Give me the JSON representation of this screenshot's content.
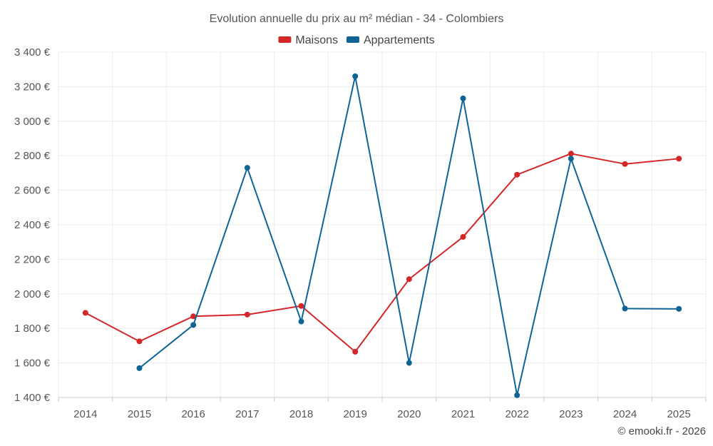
{
  "chart_data": {
    "type": "line",
    "title": "Evolution annuelle du prix au m² médian - 34 - Colombiers",
    "categories": [
      "2014",
      "2015",
      "2016",
      "2017",
      "2018",
      "2019",
      "2020",
      "2021",
      "2022",
      "2023",
      "2024",
      "2025"
    ],
    "ylim": [
      1400,
      3400
    ],
    "yticks": [
      1400,
      1600,
      1800,
      2000,
      2200,
      2400,
      2600,
      2800,
      3000,
      3200,
      3400
    ],
    "ytick_labels": [
      "1 400 €",
      "1 600 €",
      "1 800 €",
      "2 000 €",
      "2 200 €",
      "2 400 €",
      "2 600 €",
      "2 800 €",
      "3 000 €",
      "3 200 €",
      "3 400 €"
    ],
    "xlabel": "",
    "ylabel": "",
    "grid": true,
    "legend_position": "top-center",
    "series": [
      {
        "name": "Maisons",
        "color": "#d62728",
        "values": [
          1890,
          1725,
          1870,
          1880,
          1930,
          1665,
          2085,
          2330,
          2690,
          2812,
          2752,
          2783
        ]
      },
      {
        "name": "Appartements",
        "color": "#0f6496",
        "values": [
          null,
          1570,
          1820,
          2730,
          1840,
          3260,
          1600,
          3132,
          1413,
          2783,
          1915,
          1913
        ]
      }
    ]
  },
  "credit": "© emooki.fr - 2026"
}
